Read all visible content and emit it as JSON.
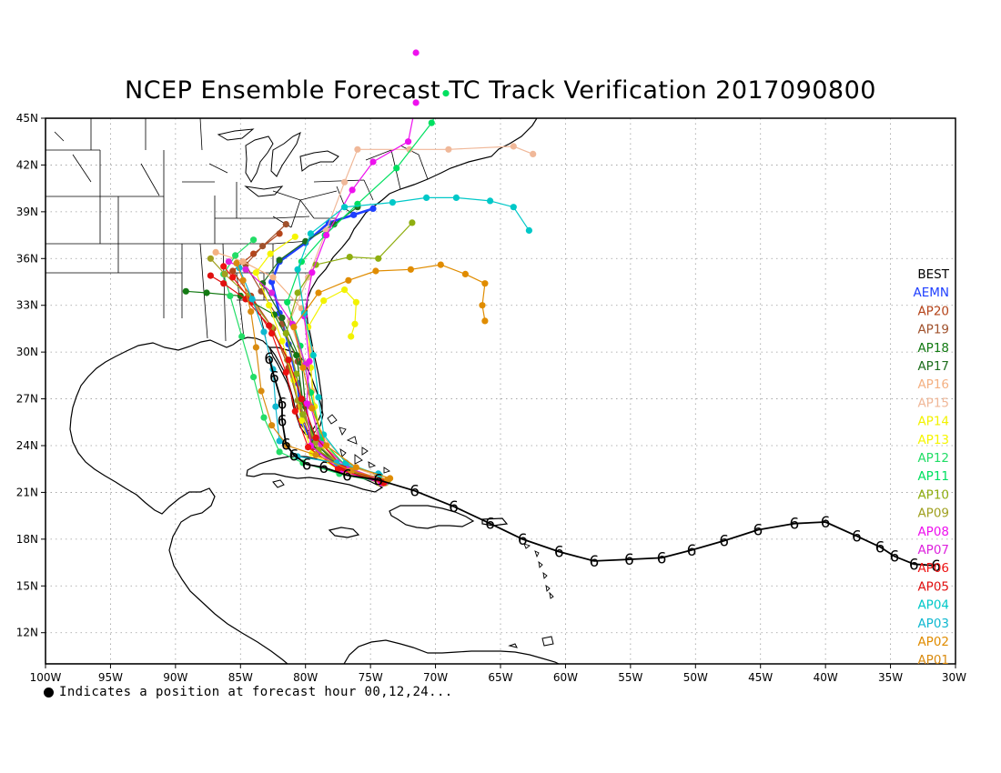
{
  "title": "NCEP Ensemble Forecast TC Track Verification 2017090800",
  "footnote": "Indicates a position at forecast hour 00,12,24...",
  "map": {
    "lon_range": [
      -100,
      -30
    ],
    "lat_range": [
      10,
      45
    ]
  },
  "lon_ticks": [
    {
      "value": -100,
      "label": "100W"
    },
    {
      "value": -95,
      "label": "95W"
    },
    {
      "value": -90,
      "label": "90W"
    },
    {
      "value": -85,
      "label": "85W"
    },
    {
      "value": -80,
      "label": "80W"
    },
    {
      "value": -75,
      "label": "75W"
    },
    {
      "value": -70,
      "label": "70W"
    },
    {
      "value": -65,
      "label": "65W"
    },
    {
      "value": -60,
      "label": "60W"
    },
    {
      "value": -55,
      "label": "55W"
    },
    {
      "value": -50,
      "label": "50W"
    },
    {
      "value": -45,
      "label": "45W"
    },
    {
      "value": -40,
      "label": "40W"
    },
    {
      "value": -35,
      "label": "35W"
    },
    {
      "value": -30,
      "label": "30W"
    }
  ],
  "lat_ticks": [
    {
      "value": 45,
      "label": "45N"
    },
    {
      "value": 42,
      "label": "42N"
    },
    {
      "value": 39,
      "label": "39N"
    },
    {
      "value": 36,
      "label": "36N"
    },
    {
      "value": 33,
      "label": "33N"
    },
    {
      "value": 30,
      "label": "30N"
    },
    {
      "value": 27,
      "label": "27N"
    },
    {
      "value": 24,
      "label": "24N"
    },
    {
      "value": 21,
      "label": "21N"
    },
    {
      "value": 18,
      "label": "18N"
    },
    {
      "value": 15,
      "label": "15N"
    },
    {
      "value": 12,
      "label": "12N"
    }
  ],
  "legend": [
    {
      "label": "BEST",
      "color": "#000000"
    },
    {
      "label": "AEMN",
      "color": "#1f3fff"
    },
    {
      "label": "AP20",
      "color": "#b5441a"
    },
    {
      "label": "AP19",
      "color": "#a0522d"
    },
    {
      "label": "AP18",
      "color": "#137a13"
    },
    {
      "label": "AP17",
      "color": "#1e6e1e"
    },
    {
      "label": "AP16",
      "color": "#f4b183"
    },
    {
      "label": "AP15",
      "color": "#f0b899"
    },
    {
      "label": "AP14",
      "color": "#f2f200"
    },
    {
      "label": "AP13",
      "color": "#f5f500"
    },
    {
      "label": "AP12",
      "color": "#22dd66"
    },
    {
      "label": "AP11",
      "color": "#00e060"
    },
    {
      "label": "AP10",
      "color": "#8fae10"
    },
    {
      "label": "AP09",
      "color": "#a0a020"
    },
    {
      "label": "AP08",
      "color": "#ee11ee"
    },
    {
      "label": "AP07",
      "color": "#dd22dd"
    },
    {
      "label": "AP06",
      "color": "#ee1111"
    },
    {
      "label": "AP05",
      "color": "#e01010"
    },
    {
      "label": "AP04",
      "color": "#00c8c8"
    },
    {
      "label": "AP03",
      "color": "#10b8d0"
    },
    {
      "label": "AP02",
      "color": "#e08c00"
    },
    {
      "label": "AP01",
      "color": "#d98b10"
    }
  ],
  "best_track": [
    [
      -31.5,
      16.3
    ],
    [
      -33.2,
      16.4
    ],
    [
      -34.7,
      16.9
    ],
    [
      -35.8,
      17.5
    ],
    [
      -37.6,
      18.2
    ],
    [
      -40,
      19.1
    ],
    [
      -42.4,
      19
    ],
    [
      -45.2,
      18.6
    ],
    [
      -47.8,
      17.9
    ],
    [
      -50.3,
      17.3
    ],
    [
      -52.6,
      16.8
    ],
    [
      -55.1,
      16.7
    ],
    [
      -57.8,
      16.6
    ],
    [
      -60.5,
      17.2
    ],
    [
      -63.3,
      18
    ],
    [
      -65.8,
      19
    ],
    [
      -68.6,
      20.1
    ],
    [
      -71.6,
      21.1
    ],
    [
      -74.4,
      21.8
    ],
    [
      -76.8,
      22.1
    ],
    [
      -78.6,
      22.6
    ],
    [
      -79.9,
      22.8
    ],
    [
      -80.9,
      23.4
    ],
    [
      -81.5,
      24.1
    ],
    [
      -81.8,
      25.6
    ],
    [
      -81.8,
      26.7
    ],
    [
      -82.4,
      28.4
    ],
    [
      -82.8,
      29.6
    ]
  ],
  "tracks": [
    {
      "name": "AEMN",
      "points": [
        [
          -73.8,
          21.7
        ],
        [
          -76.5,
          22.3
        ],
        [
          -79,
          23.6
        ],
        [
          -80.3,
          25.5
        ],
        [
          -80.6,
          28
        ],
        [
          -81.3,
          30.5
        ],
        [
          -82,
          32.5
        ],
        [
          -82.6,
          34.5
        ],
        [
          -82,
          35.8
        ],
        [
          -80,
          37
        ],
        [
          -78.2,
          38.3
        ],
        [
          -76.3,
          38.8
        ],
        [
          -74.8,
          39.2
        ]
      ]
    },
    {
      "name": "AP20",
      "points": [
        [
          -74,
          21.6
        ],
        [
          -77,
          22.4
        ],
        [
          -79.4,
          23.9
        ],
        [
          -80.5,
          26.5
        ],
        [
          -81.3,
          29
        ],
        [
          -82.5,
          31.5
        ],
        [
          -84.2,
          33.6
        ],
        [
          -85.6,
          35.2
        ],
        [
          -84,
          36.3
        ],
        [
          -82,
          37.6
        ]
      ]
    },
    {
      "name": "AP19",
      "points": [
        [
          -74.2,
          21.7
        ],
        [
          -77.3,
          22.6
        ],
        [
          -79.6,
          24.6
        ],
        [
          -80.3,
          27
        ],
        [
          -80.6,
          29.4
        ],
        [
          -81.8,
          31.8
        ],
        [
          -83.4,
          33.9
        ],
        [
          -84.6,
          35.6
        ],
        [
          -83.3,
          36.8
        ],
        [
          -81.5,
          38.2
        ]
      ]
    },
    {
      "name": "AP18",
      "points": [
        [
          -73.9,
          21.7
        ],
        [
          -76.8,
          22.5
        ],
        [
          -79.1,
          24
        ],
        [
          -80.2,
          26.8
        ],
        [
          -80.7,
          29.8
        ],
        [
          -82.4,
          32.4
        ],
        [
          -85,
          33.6
        ],
        [
          -87.6,
          33.8
        ],
        [
          -89.2,
          33.9
        ]
      ]
    },
    {
      "name": "AP17",
      "points": [
        [
          -74.1,
          21.6
        ],
        [
          -77.2,
          22.5
        ],
        [
          -79.3,
          24.2
        ],
        [
          -80,
          26.5
        ],
        [
          -80.3,
          29.3
        ],
        [
          -81.8,
          32.2
        ],
        [
          -83.3,
          34.4
        ],
        [
          -82,
          35.9
        ],
        [
          -80,
          37.1
        ],
        [
          -77.8,
          38.2
        ],
        [
          -76,
          39.3
        ]
      ]
    },
    {
      "name": "AP16",
      "points": [
        [
          -73.6,
          21.8
        ],
        [
          -76.6,
          22.7
        ],
        [
          -78.9,
          24.8
        ],
        [
          -79.5,
          27.5
        ],
        [
          -79.6,
          30.2
        ],
        [
          -80.3,
          32.8
        ],
        [
          -82.5,
          34.8
        ],
        [
          -84.8,
          35.8
        ],
        [
          -86.9,
          36.4
        ]
      ]
    },
    {
      "name": "AP15",
      "points": [
        [
          -73.8,
          21.6
        ],
        [
          -76.9,
          22.5
        ],
        [
          -79.1,
          24.1
        ],
        [
          -79.4,
          26.6
        ],
        [
          -80.1,
          29.3
        ],
        [
          -81.2,
          32
        ],
        [
          -79.8,
          34.8
        ],
        [
          -78.4,
          37.8
        ],
        [
          -77,
          40.9
        ],
        [
          -76,
          43
        ],
        [
          -72,
          43
        ],
        [
          -69,
          43
        ],
        [
          -64,
          43.2
        ],
        [
          -62.5,
          42.7
        ]
      ]
    },
    {
      "name": "AP14",
      "points": [
        [
          -73.9,
          21.7
        ],
        [
          -76.4,
          22.4
        ],
        [
          -78.6,
          24
        ],
        [
          -79.3,
          26.5
        ],
        [
          -79.6,
          29
        ],
        [
          -79.8,
          31.6
        ],
        [
          -78.6,
          33.3
        ],
        [
          -77,
          34
        ],
        [
          -76.1,
          33.2
        ],
        [
          -76.2,
          31.8
        ],
        [
          -76.5,
          31
        ]
      ]
    },
    {
      "name": "AP13",
      "points": [
        [
          -74.3,
          21.6
        ],
        [
          -77.1,
          22.3
        ],
        [
          -79.5,
          23.5
        ],
        [
          -80.3,
          25.6
        ],
        [
          -80.9,
          28.2
        ],
        [
          -81.8,
          30.7
        ],
        [
          -82.8,
          33
        ],
        [
          -83.8,
          35.1
        ],
        [
          -82.7,
          36.3
        ],
        [
          -80.8,
          37.4
        ]
      ]
    },
    {
      "name": "AP12",
      "points": [
        [
          -74,
          21.6
        ],
        [
          -77.4,
          22.2
        ],
        [
          -80.2,
          22.9
        ],
        [
          -82,
          23.6
        ],
        [
          -83.2,
          25.8
        ],
        [
          -84,
          28.4
        ],
        [
          -84.9,
          31
        ],
        [
          -85.8,
          33.6
        ],
        [
          -86.3,
          35
        ],
        [
          -85.4,
          36.2
        ],
        [
          -84,
          37.2
        ]
      ]
    },
    {
      "name": "AP11",
      "points": [
        [
          -73.7,
          21.7
        ],
        [
          -76.7,
          22.5
        ],
        [
          -78.8,
          24.4
        ],
        [
          -79.6,
          27.4
        ],
        [
          -80.4,
          30.4
        ],
        [
          -81.4,
          33.2
        ],
        [
          -80.3,
          35.8
        ],
        [
          -78.5,
          37.5
        ],
        [
          -76,
          39.5
        ],
        [
          -73,
          41.8
        ],
        [
          -70.3,
          44.7
        ],
        [
          -69.2,
          46.6
        ]
      ]
    },
    {
      "name": "AP10",
      "points": [
        [
          -73.9,
          21.6
        ],
        [
          -76.6,
          22.4
        ],
        [
          -79,
          23.7
        ],
        [
          -80.2,
          26
        ],
        [
          -80.7,
          28.6
        ],
        [
          -81.5,
          31.2
        ],
        [
          -80.6,
          33.8
        ],
        [
          -79.2,
          35.6
        ],
        [
          -76.6,
          36.1
        ],
        [
          -74.4,
          36
        ],
        [
          -71.8,
          38.3
        ]
      ]
    },
    {
      "name": "AP09",
      "points": [
        [
          -74.1,
          21.7
        ],
        [
          -77,
          22.5
        ],
        [
          -79.2,
          24.2
        ],
        [
          -80.6,
          26.9
        ],
        [
          -81.4,
          29.5
        ],
        [
          -82.6,
          31.6
        ],
        [
          -84.4,
          33.6
        ],
        [
          -86.2,
          35
        ],
        [
          -87.3,
          36
        ]
      ]
    },
    {
      "name": "AP08",
      "points": [
        [
          -74.2,
          21.6
        ],
        [
          -77.3,
          22.4
        ],
        [
          -79.6,
          24
        ],
        [
          -79.9,
          26.7
        ],
        [
          -79.7,
          29.4
        ],
        [
          -80.1,
          32.3
        ],
        [
          -79.5,
          35.1
        ],
        [
          -78.4,
          37.5
        ],
        [
          -76.4,
          40.4
        ],
        [
          -74.8,
          42.2
        ],
        [
          -72.1,
          43.5
        ],
        [
          -71.5,
          46
        ],
        [
          -71.5,
          49.2
        ]
      ]
    },
    {
      "name": "AP07",
      "points": [
        [
          -73.8,
          21.7
        ],
        [
          -76.8,
          22.6
        ],
        [
          -78.8,
          24.1
        ],
        [
          -79.6,
          26.5
        ],
        [
          -80,
          29.2
        ],
        [
          -81,
          31.8
        ],
        [
          -82.6,
          33.8
        ],
        [
          -84.6,
          35.3
        ],
        [
          -85.9,
          35.8
        ]
      ]
    },
    {
      "name": "AP06",
      "points": [
        [
          -74,
          21.6
        ],
        [
          -77.5,
          22.5
        ],
        [
          -79.8,
          23.9
        ],
        [
          -80.8,
          26.2
        ],
        [
          -81.5,
          28.7
        ],
        [
          -82.6,
          31.2
        ],
        [
          -84.1,
          33.2
        ],
        [
          -85.6,
          34.8
        ],
        [
          -86.3,
          35.5
        ]
      ]
    },
    {
      "name": "AP05",
      "points": [
        [
          -74.1,
          21.7
        ],
        [
          -77.1,
          22.6
        ],
        [
          -79.2,
          24.5
        ],
        [
          -80.3,
          27
        ],
        [
          -81.3,
          29.5
        ],
        [
          -82.8,
          31.7
        ],
        [
          -84.6,
          33.4
        ],
        [
          -86.3,
          34.4
        ],
        [
          -87.3,
          34.9
        ]
      ]
    },
    {
      "name": "AP04",
      "points": [
        [
          -74.3,
          22.1
        ],
        [
          -76.9,
          22.9
        ],
        [
          -78.6,
          24.7
        ],
        [
          -79,
          27.1
        ],
        [
          -79.4,
          29.8
        ],
        [
          -80.1,
          32.5
        ],
        [
          -80.6,
          35.3
        ],
        [
          -79.6,
          37.6
        ],
        [
          -77,
          39.3
        ],
        [
          -73.3,
          39.6
        ],
        [
          -70.7,
          39.9
        ],
        [
          -68.4,
          39.9
        ],
        [
          -65.8,
          39.7
        ],
        [
          -64,
          39.3
        ],
        [
          -62.8,
          37.8
        ]
      ]
    },
    {
      "name": "AP03",
      "points": [
        [
          -74.4,
          22.2
        ],
        [
          -77.6,
          22.9
        ],
        [
          -80.6,
          23.3
        ],
        [
          -82,
          24.3
        ],
        [
          -82.3,
          26.5
        ],
        [
          -82.5,
          28.9
        ],
        [
          -83.2,
          31.3
        ],
        [
          -84.1,
          33.4
        ],
        [
          -85.1,
          35.4
        ]
      ]
    },
    {
      "name": "AP02",
      "points": [
        [
          -73.5,
          21.9
        ],
        [
          -76.1,
          22.6
        ],
        [
          -78.4,
          24
        ],
        [
          -79.5,
          26.4
        ],
        [
          -80.2,
          29
        ],
        [
          -80.9,
          31.6
        ],
        [
          -79,
          33.8
        ],
        [
          -76.7,
          34.6
        ],
        [
          -74.6,
          35.2
        ],
        [
          -71.9,
          35.3
        ],
        [
          -69.6,
          35.6
        ],
        [
          -67.7,
          35
        ],
        [
          -66.2,
          34.4
        ],
        [
          -66.4,
          33
        ],
        [
          -66.2,
          32
        ]
      ]
    },
    {
      "name": "AP01",
      "points": [
        [
          -73.7,
          21.8
        ],
        [
          -76.5,
          22.4
        ],
        [
          -79.2,
          23.4
        ],
        [
          -81.4,
          24
        ],
        [
          -82.6,
          25.3
        ],
        [
          -83.4,
          27.5
        ],
        [
          -83.8,
          30.3
        ],
        [
          -84.2,
          32.6
        ],
        [
          -84.8,
          34.6
        ],
        [
          -85.3,
          35.7
        ]
      ]
    }
  ]
}
